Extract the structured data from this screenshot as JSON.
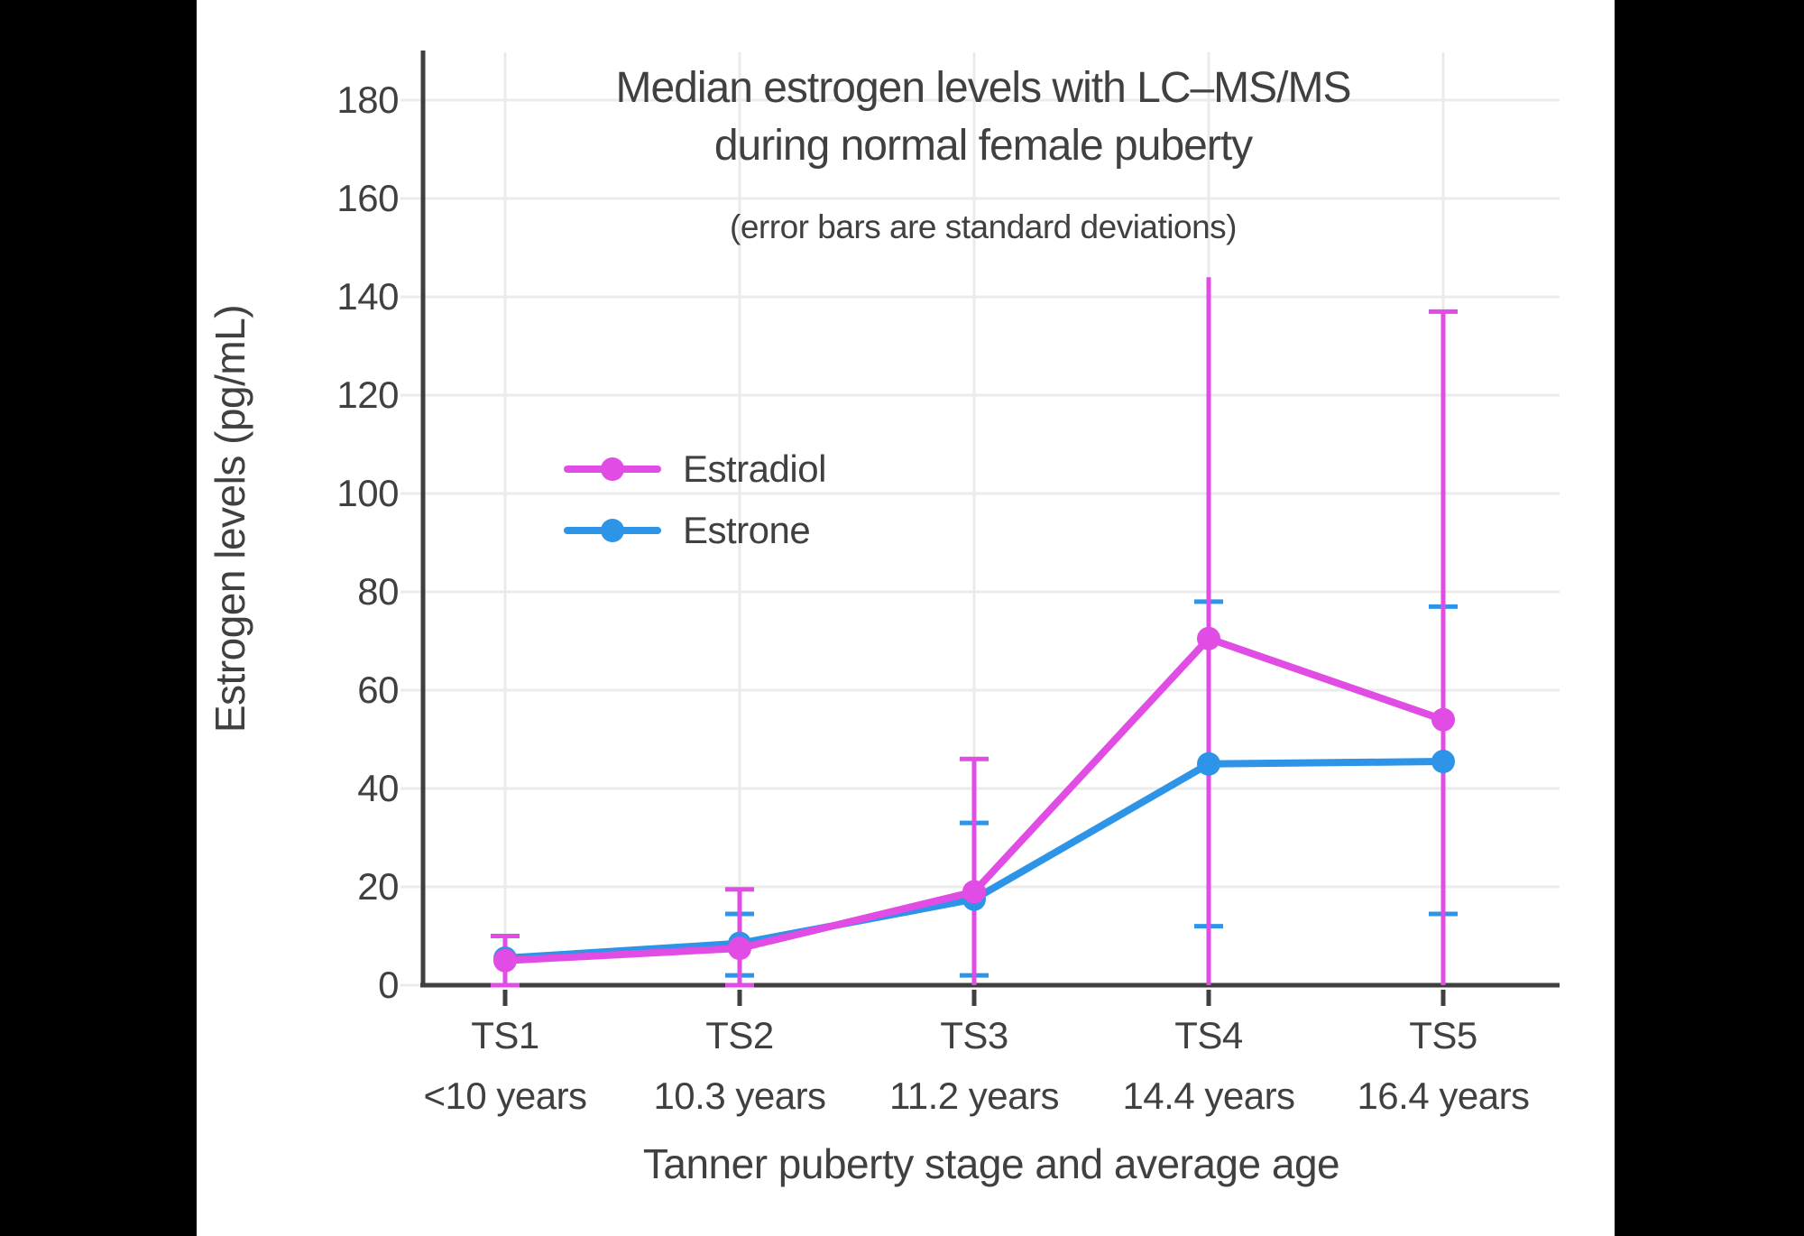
{
  "colors": {
    "background_bars": "#000000",
    "canvas": "#FFFFFF",
    "grid": "#EBEBEB",
    "axis": "#3F3F3F",
    "text": "#404040"
  },
  "chart_data": {
    "type": "line",
    "title_line1": "Median estrogen levels with LC–MS/MS",
    "title_line2": "during normal female puberty",
    "subtitle": "(error bars are standard deviations)",
    "xlabel": "Tanner puberty stage and average age",
    "ylabel": "Estrogen levels (pg/mL)",
    "grid": true,
    "legend_position": "inside middle-left",
    "ylim": [
      0,
      190
    ],
    "y_ticks": [
      0,
      20,
      40,
      60,
      80,
      100,
      120,
      140,
      160,
      180
    ],
    "categories": [
      {
        "stage": "TS1",
        "age": "<10 years"
      },
      {
        "stage": "TS2",
        "age": "10.3 years"
      },
      {
        "stage": "TS3",
        "age": "11.2 years"
      },
      {
        "stage": "TS4",
        "age": "14.4 years"
      },
      {
        "stage": "TS5",
        "age": "16.4 years"
      }
    ],
    "series": [
      {
        "name": "Estradiol",
        "color": "#E04CE4",
        "values": [
          5,
          7.5,
          19,
          70.5,
          54
        ],
        "error_low": [
          0,
          0,
          0,
          0,
          0
        ],
        "error_high": [
          10,
          19.5,
          46,
          144,
          137
        ],
        "cap_top": [
          true,
          true,
          true,
          false,
          true
        ],
        "cap_bottom": [
          true,
          true,
          false,
          false,
          false
        ]
      },
      {
        "name": "Estrone",
        "color": "#2D94E8",
        "values": [
          5.5,
          8.5,
          17.5,
          45,
          45.5
        ],
        "error_low": [
          null,
          2,
          2,
          12,
          14.5
        ],
        "error_high": [
          null,
          14.5,
          33,
          78,
          77
        ],
        "cap_top": [
          false,
          true,
          true,
          true,
          true
        ],
        "cap_bottom": [
          false,
          true,
          true,
          true,
          true
        ]
      }
    ]
  }
}
